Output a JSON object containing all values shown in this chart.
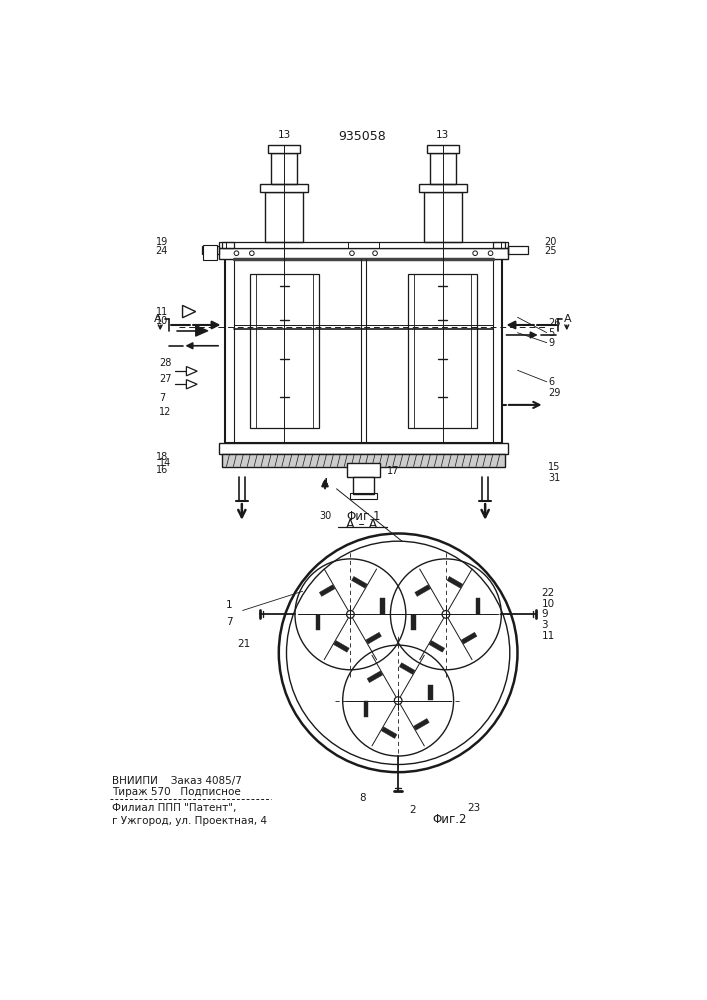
{
  "patent_number": "935058",
  "fig1_caption": "Φиг.1",
  "fig2_caption": "Φиг.2",
  "section_label": "A – A",
  "bottom_text_line1": "ВНИИПИ    Заказ 4085/7",
  "bottom_text_line2": "Тираж 570   Подписное",
  "bottom_text_line3": "Филиал ППП \"Патент\",",
  "bottom_text_line4": "г Ужгород, ул. Проектная, 4",
  "bg_color": "#ffffff",
  "line_color": "#1a1a1a"
}
